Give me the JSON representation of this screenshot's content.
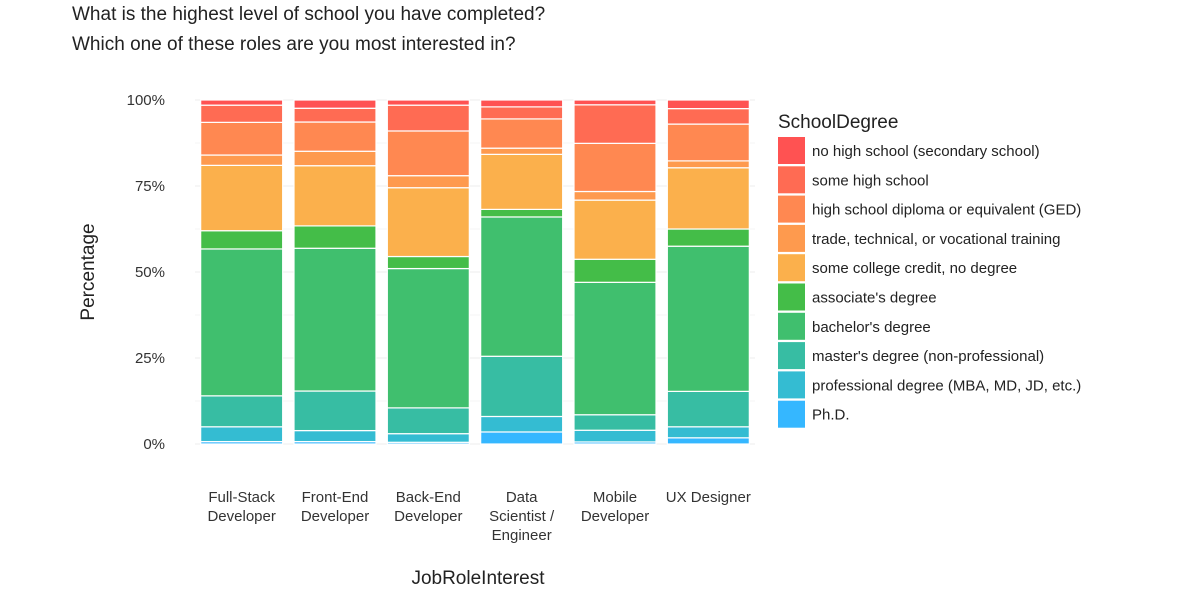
{
  "header": {
    "title_line1": "What is the highest level of school you have completed?",
    "title_line2": "Which one of these roles are you most interested in?"
  },
  "chart_data": {
    "type": "bar",
    "stacked": true,
    "normalized": true,
    "xlabel": "JobRoleInterest",
    "ylabel": "Percentage",
    "ylim": [
      0,
      1
    ],
    "y_ticks": [
      "0%",
      "25%",
      "50%",
      "75%",
      "100%"
    ],
    "grid": true,
    "legend_title": "SchoolDegree",
    "legend_position": "right",
    "categories": [
      [
        "Full-Stack",
        "Developer"
      ],
      [
        "Front-End",
        "Developer"
      ],
      [
        "Back-End",
        "Developer"
      ],
      [
        "Data",
        "Scientist /",
        "Engineer"
      ],
      [
        "Mobile",
        "Developer"
      ],
      [
        "UX Designer"
      ]
    ],
    "series": [
      {
        "name": "Ph.D.",
        "color": "#35B7FF",
        "values": [
          0.007,
          0.007,
          0.005,
          0.035,
          0.006,
          0.018
        ]
      },
      {
        "name": "professional degree (MBA, MD, JD, etc.)",
        "color": "#34BCD2",
        "values": [
          0.043,
          0.032,
          0.025,
          0.045,
          0.034,
          0.032
        ]
      },
      {
        "name": "master's degree (non-professional)",
        "color": "#37BDA3",
        "values": [
          0.09,
          0.115,
          0.075,
          0.175,
          0.045,
          0.103
        ]
      },
      {
        "name": "bachelor's degree",
        "color": "#40BF6E",
        "values": [
          0.427,
          0.415,
          0.405,
          0.405,
          0.385,
          0.422
        ]
      },
      {
        "name": "associate's degree",
        "color": "#44BD48",
        "values": [
          0.053,
          0.065,
          0.035,
          0.022,
          0.067,
          0.05
        ]
      },
      {
        "name": "some college credit, no degree",
        "color": "#FBB04C",
        "values": [
          0.19,
          0.175,
          0.2,
          0.16,
          0.172,
          0.178
        ]
      },
      {
        "name": "trade, technical, or vocational training",
        "color": "#FE9A4E",
        "values": [
          0.03,
          0.042,
          0.035,
          0.018,
          0.025,
          0.02
        ]
      },
      {
        "name": "high school diploma or equivalent (GED)",
        "color": "#FF8851",
        "values": [
          0.095,
          0.085,
          0.13,
          0.085,
          0.14,
          0.107
        ]
      },
      {
        "name": "some high school",
        "color": "#FF6B53",
        "values": [
          0.05,
          0.04,
          0.075,
          0.035,
          0.112,
          0.045
        ]
      },
      {
        "name": "no high school (secondary school)",
        "color": "#FF5252",
        "values": [
          0.015,
          0.024,
          0.015,
          0.02,
          0.014,
          0.025
        ]
      }
    ]
  }
}
